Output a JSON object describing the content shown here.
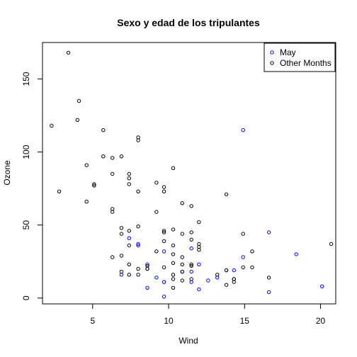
{
  "chart_data": {
    "type": "scatter",
    "title": "Sexo y edad de los tripulantes",
    "xlabel": "Wind",
    "ylabel": "Ozone",
    "xlim": [
      1.7,
      21.0
    ],
    "ylim": [
      -4,
      175
    ],
    "x_ticks": [
      5,
      10,
      15,
      20
    ],
    "y_ticks": [
      0,
      50,
      100,
      150
    ],
    "legend_position": "top-right",
    "grid": false,
    "series": [
      {
        "name": "May",
        "color": "#0000ff",
        "points": [
          [
            7.4,
            41
          ],
          [
            8.0,
            36
          ],
          [
            12.6,
            12
          ],
          [
            11.5,
            18
          ],
          [
            14.3,
            19
          ],
          [
            14.9,
            28
          ],
          [
            8.6,
            23
          ],
          [
            13.8,
            19
          ],
          [
            20.1,
            8
          ],
          [
            8.6,
            7
          ],
          [
            6.9,
            16
          ],
          [
            9.7,
            11
          ],
          [
            9.2,
            14
          ],
          [
            10.9,
            18
          ],
          [
            13.2,
            14
          ],
          [
            11.5,
            34
          ],
          [
            12.0,
            6
          ],
          [
            18.4,
            30
          ],
          [
            11.5,
            11
          ],
          [
            9.7,
            1
          ],
          [
            9.7,
            11
          ],
          [
            16.6,
            4
          ],
          [
            9.7,
            32
          ],
          [
            12.0,
            23
          ],
          [
            16.6,
            45
          ],
          [
            14.9,
            115
          ],
          [
            8.0,
            37
          ]
        ]
      },
      {
        "name": "Other Months",
        "color": "#000000",
        "points": [
          [
            5.7,
            115
          ],
          [
            7.4,
            78
          ],
          [
            6.9,
            29
          ],
          [
            8.6,
            22
          ],
          [
            9.7,
            45
          ],
          [
            10.3,
            36
          ],
          [
            11.5,
            40
          ],
          [
            6.3,
            28
          ],
          [
            2.3,
            118
          ],
          [
            2.8,
            73
          ],
          [
            4.1,
            135
          ],
          [
            3.4,
            168
          ],
          [
            4.0,
            122
          ],
          [
            4.6,
            91
          ],
          [
            5.1,
            78
          ],
          [
            6.3,
            96
          ],
          [
            7.4,
            82
          ],
          [
            8.0,
            110
          ],
          [
            10.3,
            89
          ],
          [
            5.7,
            97
          ],
          [
            6.9,
            97
          ],
          [
            6.3,
            85
          ],
          [
            9.7,
            73
          ],
          [
            7.4,
            85
          ],
          [
            10.9,
            65
          ],
          [
            11.5,
            63
          ],
          [
            12.0,
            52
          ],
          [
            8.0,
            108
          ],
          [
            9.2,
            59
          ],
          [
            4.6,
            66
          ],
          [
            9.2,
            79
          ],
          [
            10.9,
            23
          ],
          [
            9.2,
            32
          ],
          [
            6.9,
            48
          ],
          [
            14.9,
            21
          ],
          [
            7.4,
            36
          ],
          [
            8.6,
            20
          ],
          [
            7.4,
            16
          ],
          [
            6.9,
            44
          ],
          [
            13.8,
            71
          ],
          [
            9.7,
            39
          ],
          [
            12.0,
            35
          ],
          [
            10.3,
            16
          ],
          [
            6.3,
            61
          ],
          [
            5.1,
            77
          ],
          [
            8.0,
            49
          ],
          [
            10.3,
            24
          ],
          [
            13.8,
            9
          ],
          [
            11.5,
            13
          ],
          [
            14.3,
            13
          ],
          [
            10.9,
            44
          ],
          [
            20.7,
            37
          ],
          [
            15.5,
            21
          ],
          [
            9.7,
            21
          ],
          [
            10.9,
            28
          ],
          [
            13.2,
            16
          ],
          [
            7.4,
            46
          ],
          [
            11.5,
            45
          ],
          [
            8.0,
            73
          ],
          [
            6.3,
            59
          ],
          [
            9.7,
            76
          ],
          [
            11.5,
            23
          ],
          [
            14.3,
            13
          ],
          [
            15.5,
            32
          ],
          [
            10.9,
            18
          ],
          [
            8.6,
            20
          ],
          [
            12.0,
            37
          ],
          [
            16.6,
            14
          ],
          [
            10.3,
            7
          ],
          [
            13.8,
            19
          ],
          [
            8.0,
            20
          ],
          [
            10.3,
            13
          ],
          [
            14.3,
            11
          ],
          [
            7.4,
            23
          ],
          [
            10.3,
            47
          ],
          [
            12.0,
            33
          ],
          [
            8.0,
            16
          ],
          [
            10.9,
            12
          ],
          [
            10.3,
            30
          ],
          [
            11.5,
            22
          ],
          [
            14.9,
            44
          ],
          [
            6.9,
            18
          ],
          [
            9.7,
            46
          ]
        ]
      }
    ]
  }
}
